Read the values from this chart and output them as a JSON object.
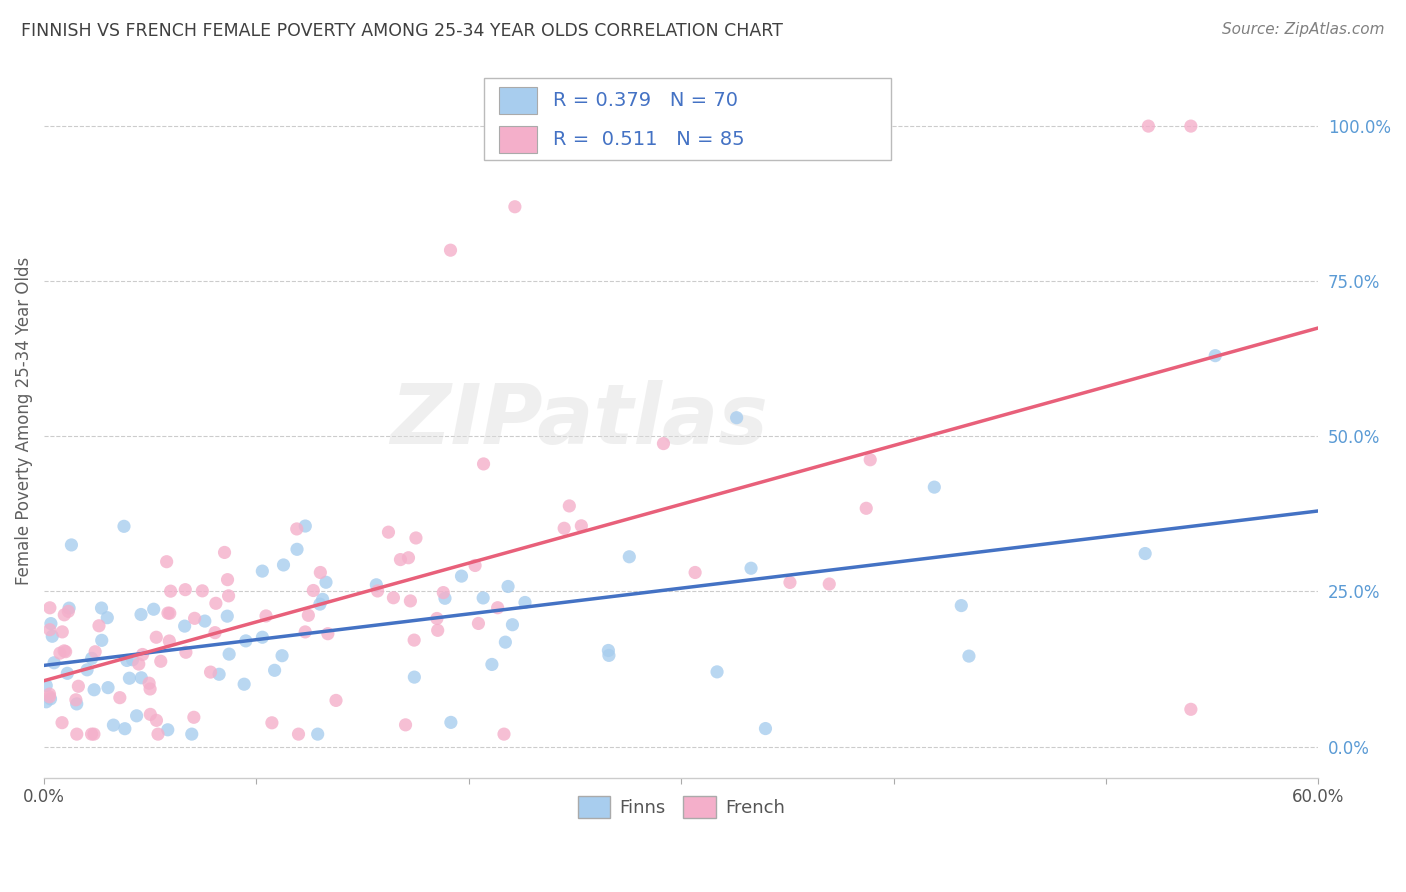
{
  "title": "FINNISH VS FRENCH FEMALE POVERTY AMONG 25-34 YEAR OLDS CORRELATION CHART",
  "source": "Source: ZipAtlas.com",
  "ylabel": "Female Poverty Among 25-34 Year Olds",
  "xlim": [
    0.0,
    0.6
  ],
  "ylim": [
    -0.05,
    1.1
  ],
  "xtick_positions": [
    0.0,
    0.1,
    0.2,
    0.3,
    0.4,
    0.5,
    0.6
  ],
  "xtick_labels": [
    "0.0%",
    "",
    "",
    "",
    "",
    "",
    "60.0%"
  ],
  "ytick_vals_right": [
    0.0,
    0.25,
    0.5,
    0.75,
    1.0
  ],
  "ytick_labels_right": [
    "0.0%",
    "25.0%",
    "50.0%",
    "75.0%",
    "100.0%"
  ],
  "color_finns": "#A8CDEE",
  "color_french": "#F4AFCA",
  "color_finns_line": "#4472C4",
  "color_french_line": "#E8607A",
  "color_right_axis": "#5B9BD5",
  "R_finns": 0.379,
  "N_finns": 70,
  "R_french": 0.511,
  "N_french": 85,
  "watermark": "ZIPatlas",
  "background_color": "#FFFFFF",
  "grid_color": "#CCCCCC",
  "legend_text_color": "#4472C4",
  "title_color": "#404040",
  "source_color": "#808080",
  "ylabel_color": "#606060"
}
